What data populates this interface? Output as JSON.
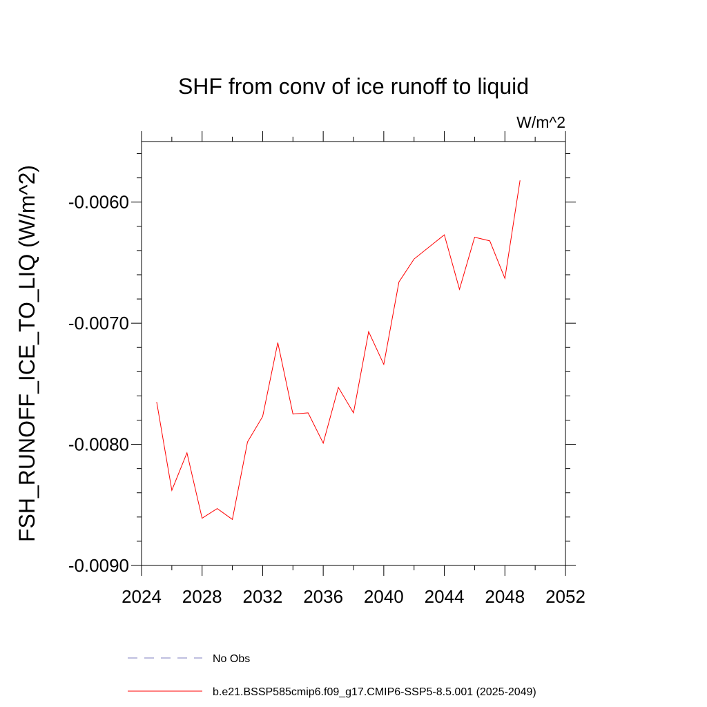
{
  "chart_data": {
    "type": "line",
    "title": "SHF from conv of ice runoff to liquid",
    "units_label": "W/m^2",
    "ylabel": "FSH_RUNOFF_ICE_TO_LIQ  (W/m^2)",
    "xlabel": "",
    "xlim": [
      2024,
      2052
    ],
    "ylim": [
      -0.009,
      -0.0055
    ],
    "x_ticks": [
      2024,
      2028,
      2032,
      2036,
      2040,
      2044,
      2048,
      2052
    ],
    "x_tick_labels": [
      "2024",
      "2028",
      "2032",
      "2036",
      "2040",
      "2044",
      "2048",
      "2052"
    ],
    "y_ticks": [
      -0.009,
      -0.008,
      -0.007,
      -0.006
    ],
    "y_tick_labels": [
      "-0.0090",
      "-0.0080",
      "-0.0070",
      "-0.0060"
    ],
    "grid": false,
    "legend_position": "bottom",
    "series": [
      {
        "name": "No Obs",
        "color": "#7f7fbf",
        "dash": "dashed",
        "x": [],
        "values": []
      },
      {
        "name": "b.e21.BSSP585cmip6.f09_g17.CMIP6-SSP5-8.5.001 (2025-2049)",
        "color": "#ff0000",
        "dash": "solid",
        "x": [
          2025,
          2026,
          2027,
          2028,
          2029,
          2030,
          2031,
          2032,
          2033,
          2034,
          2035,
          2036,
          2037,
          2038,
          2039,
          2040,
          2041,
          2042,
          2043,
          2044,
          2045,
          2046,
          2047,
          2048,
          2049
        ],
        "values": [
          -0.00765,
          -0.00838,
          -0.00807,
          -0.00861,
          -0.00853,
          -0.00862,
          -0.00798,
          -0.00777,
          -0.00716,
          -0.00775,
          -0.00774,
          -0.00799,
          -0.00753,
          -0.00774,
          -0.00707,
          -0.00734,
          -0.00666,
          -0.00647,
          -0.00637,
          -0.00627,
          -0.00672,
          -0.00629,
          -0.00632,
          -0.00663,
          -0.00582
        ]
      }
    ]
  }
}
